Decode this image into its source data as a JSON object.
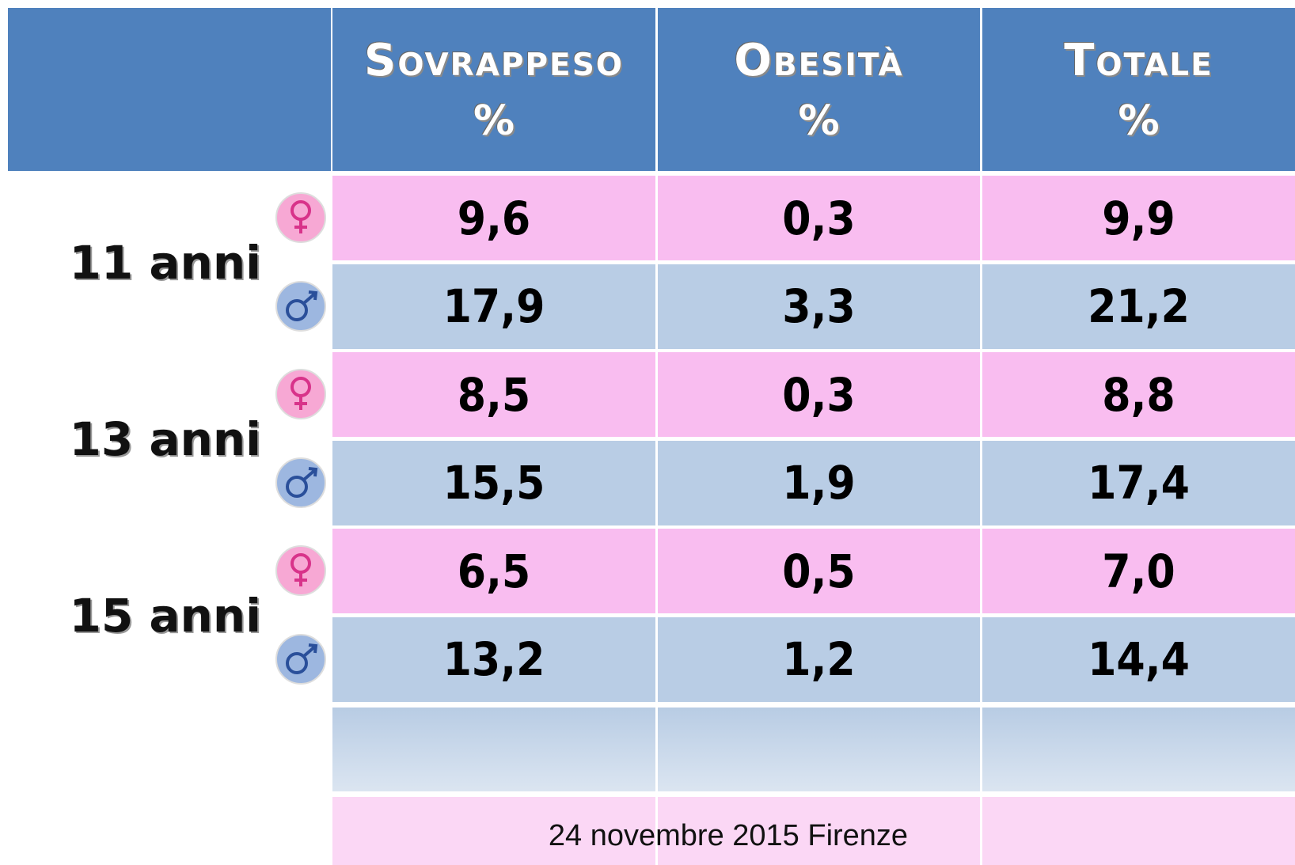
{
  "table": {
    "columns": [
      {
        "label": "Sovrappeso",
        "unit": "%"
      },
      {
        "label": "Obesità",
        "unit": "%"
      },
      {
        "label": "Totale",
        "unit": "%"
      }
    ],
    "groups": [
      "11 anni",
      "13 anni",
      "15 anni"
    ],
    "rows": [
      [
        "9,6",
        "0,3",
        "9,9"
      ],
      [
        "17,9",
        "3,3",
        "21,2"
      ],
      [
        "8,5",
        "0,3",
        "8,8"
      ],
      [
        "15,5",
        "1,9",
        "17,4"
      ],
      [
        "6,5",
        "0,5",
        "7,0"
      ],
      [
        "13,2",
        "1,2",
        "14,4"
      ]
    ]
  },
  "footer": "24 novembre 2015  Firenze"
}
